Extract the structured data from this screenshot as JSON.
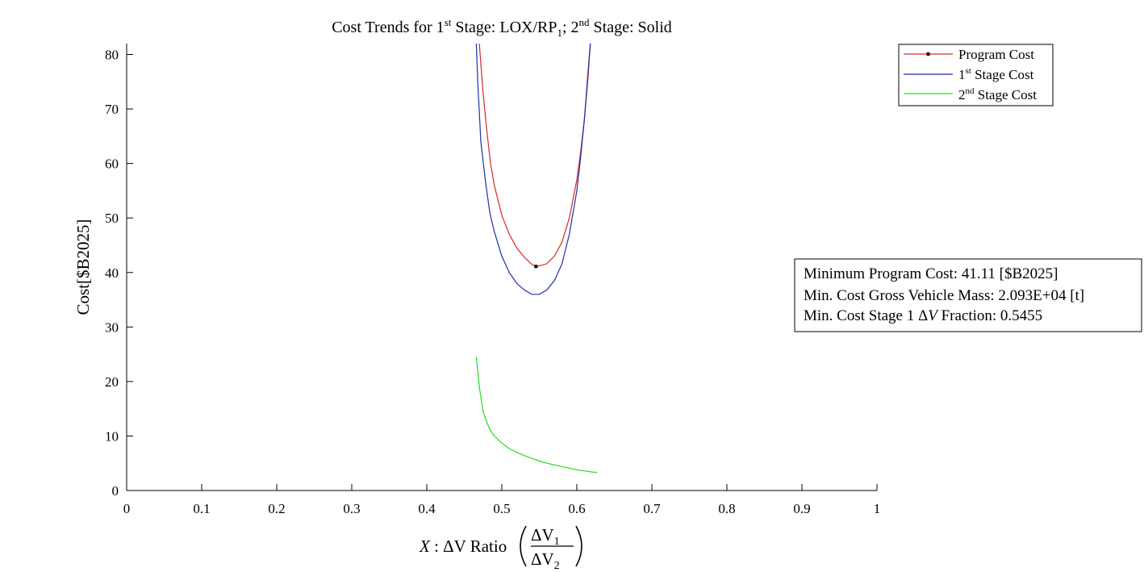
{
  "chart_data": {
    "type": "line",
    "title": {
      "prefix": "Cost Trends for 1",
      "sup1": "st",
      "mid1": " Stage: LOX/RP",
      "sub1": "1",
      "mid2": "; 2",
      "sup2": "nd",
      "suffix": " Stage: Solid"
    },
    "ylabel": "Cost[$B2025]",
    "xlabel": {
      "var": "X",
      "colon": " : ",
      "delta_v": "ΔV",
      "ratio": " Ratio",
      "num": "ΔV",
      "num_sub": "1",
      "den": "ΔV",
      "den_sub": "2"
    },
    "xlim": [
      0,
      1
    ],
    "ylim": [
      0,
      82
    ],
    "x_ticks": [
      0,
      0.1,
      0.2,
      0.3,
      0.4,
      0.5,
      0.6,
      0.7,
      0.8,
      0.9,
      1
    ],
    "x_tick_labels": [
      "0",
      "0.1",
      "0.2",
      "0.3",
      "0.4",
      "0.5",
      "0.6",
      "0.7",
      "0.8",
      "0.9",
      "1"
    ],
    "y_ticks": [
      0,
      10,
      20,
      30,
      40,
      50,
      60,
      70,
      80
    ],
    "y_tick_labels": [
      "0",
      "10",
      "20",
      "30",
      "40",
      "50",
      "60",
      "70",
      "80"
    ],
    "grid": false,
    "legend_position": "top-right",
    "series": [
      {
        "name": "Program Cost",
        "color": "#d62728",
        "x": [
          0.47,
          0.475,
          0.48,
          0.485,
          0.49,
          0.5,
          0.51,
          0.52,
          0.53,
          0.54,
          0.5455,
          0.55,
          0.56,
          0.57,
          0.58,
          0.59,
          0.6,
          0.605,
          0.61,
          0.615,
          0.618
        ],
        "y": [
          82,
          73,
          66,
          60,
          56,
          50.5,
          47,
          44.5,
          42.8,
          41.5,
          41.11,
          41.2,
          41.6,
          43,
          45.5,
          50,
          57,
          62,
          68,
          76,
          82
        ]
      },
      {
        "name": "1st Stage Cost",
        "color": "#1f2fa8",
        "x": [
          0.466,
          0.468,
          0.472,
          0.478,
          0.484,
          0.49,
          0.5,
          0.51,
          0.52,
          0.53,
          0.54,
          0.55,
          0.56,
          0.57,
          0.58,
          0.59,
          0.6,
          0.605,
          0.61,
          0.615,
          0.618
        ],
        "y": [
          82,
          75,
          64,
          57,
          51,
          47.5,
          43,
          40,
          38,
          36.8,
          36,
          36,
          36.8,
          38.5,
          41.5,
          47,
          55,
          61,
          68,
          77,
          82
        ]
      },
      {
        "name": "2nd Stage Cost",
        "color": "#22dd22",
        "x": [
          0.466,
          0.47,
          0.475,
          0.48,
          0.485,
          0.49,
          0.5,
          0.51,
          0.52,
          0.53,
          0.54,
          0.55,
          0.56,
          0.57,
          0.58,
          0.59,
          0.6,
          0.61,
          0.62,
          0.627
        ],
        "y": [
          24.5,
          19,
          14.5,
          12.5,
          11,
          10,
          8.7,
          7.7,
          7,
          6.4,
          5.9,
          5.4,
          5,
          4.7,
          4.4,
          4.1,
          3.8,
          3.6,
          3.4,
          3.3
        ]
      }
    ],
    "min_point": {
      "x": 0.5455,
      "y": 41.11
    },
    "legend": [
      {
        "text": "Program Cost",
        "sup": "",
        "suffix": ""
      },
      {
        "text": "1",
        "sup": "st",
        "suffix": " Stage Cost"
      },
      {
        "text": "2",
        "sup": "nd",
        "suffix": " Stage Cost"
      }
    ],
    "annotations": {
      "line1": "Minimum Program Cost: 41.11 [$B2025]",
      "line2": "Min. Cost Gross Vehicle Mass: 2.093E+04 [t]",
      "line3_prefix": "Min. Cost Stage 1 ",
      "line3_delta": "Δ",
      "line3_v": "V",
      "line3_suffix": " Fraction: 0.5455"
    }
  }
}
